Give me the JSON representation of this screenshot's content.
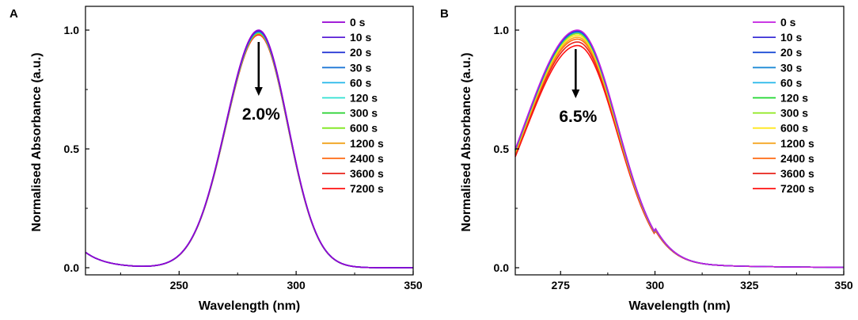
{
  "chart_data": [
    {
      "panel": "A",
      "type": "line",
      "xlabel": "Wavelength (nm)",
      "ylabel": "Normalised Absorbance (a.u.)",
      "xlim": [
        210,
        350
      ],
      "ylim": [
        -0.03,
        1.1
      ],
      "xticks": [
        250,
        300,
        350
      ],
      "xtick_labels": [
        "250",
        "300",
        "350"
      ],
      "yticks": [
        0.0,
        0.5,
        1.0
      ],
      "ytick_labels": [
        "0.0",
        "0.5",
        "1.0"
      ],
      "annotation": "2.0%",
      "arrow": {
        "x": 284,
        "from": 0.95,
        "to": 0.73
      },
      "peak_x": 284,
      "peak_width_left": 14,
      "peak_width_right": 12.5,
      "legend_position": "top-right",
      "series": [
        {
          "name": "0 s",
          "color": "#9400d3",
          "peak": 1.0
        },
        {
          "name": "10 s",
          "color": "#5a1fd6",
          "peak": 0.998
        },
        {
          "name": "20 s",
          "color": "#2b3bd6",
          "peak": 0.996
        },
        {
          "name": "30 s",
          "color": "#1f78d6",
          "peak": 0.994
        },
        {
          "name": "60 s",
          "color": "#23b7ea",
          "peak": 0.993
        },
        {
          "name": "120 s",
          "color": "#2fe0d2",
          "peak": 0.991
        },
        {
          "name": "300 s",
          "color": "#24d12e",
          "peak": 0.99
        },
        {
          "name": "600 s",
          "color": "#7ee81c",
          "peak": 0.988
        },
        {
          "name": "1200 s",
          "color": "#f0a21a",
          "peak": 0.986
        },
        {
          "name": "2400 s",
          "color": "#ff6a12",
          "peak": 0.984
        },
        {
          "name": "3600 s",
          "color": "#e8221a",
          "peak": 0.982
        },
        {
          "name": "7200 s",
          "color": "#ff1010",
          "peak": 0.98
        }
      ]
    },
    {
      "panel": "B",
      "type": "line",
      "xlabel": "Wavelength (nm)",
      "ylabel": "Normalised Absorbance (a.u.)",
      "xlim": [
        263,
        350
      ],
      "ylim": [
        -0.03,
        1.1
      ],
      "xticks": [
        275,
        300,
        325,
        350
      ],
      "xtick_labels": [
        "275",
        "300",
        "325",
        "350"
      ],
      "yticks": [
        0.0,
        0.5,
        1.0
      ],
      "ytick_labels": [
        "0.0",
        "0.5",
        "1.0"
      ],
      "annotation": "6.5%",
      "arrow": {
        "x": 279,
        "from": 0.92,
        "to": 0.72
      },
      "peak_x": 279.5,
      "peak_width_left": 14,
      "peak_width_right": 10.5,
      "legend_position": "top-right",
      "series": [
        {
          "name": "0 s",
          "color": "#c21ee0",
          "peak": 1.0
        },
        {
          "name": "10 s",
          "color": "#3a2fd6",
          "peak": 0.998
        },
        {
          "name": "20 s",
          "color": "#1f4fd6",
          "peak": 0.995
        },
        {
          "name": "30 s",
          "color": "#1f8ad6",
          "peak": 0.993
        },
        {
          "name": "60 s",
          "color": "#23b7ea",
          "peak": 0.991
        },
        {
          "name": "120 s",
          "color": "#1ed62e",
          "peak": 0.99
        },
        {
          "name": "300 s",
          "color": "#8ee81c",
          "peak": 0.985
        },
        {
          "name": "600 s",
          "color": "#ffe81a",
          "peak": 0.978
        },
        {
          "name": "1200 s",
          "color": "#f5a623",
          "peak": 0.97
        },
        {
          "name": "2400 s",
          "color": "#ff6a12",
          "peak": 0.962
        },
        {
          "name": "3600 s",
          "color": "#e8221a",
          "peak": 0.95
        },
        {
          "name": "7200 s",
          "color": "#ff1010",
          "peak": 0.935
        }
      ]
    }
  ]
}
